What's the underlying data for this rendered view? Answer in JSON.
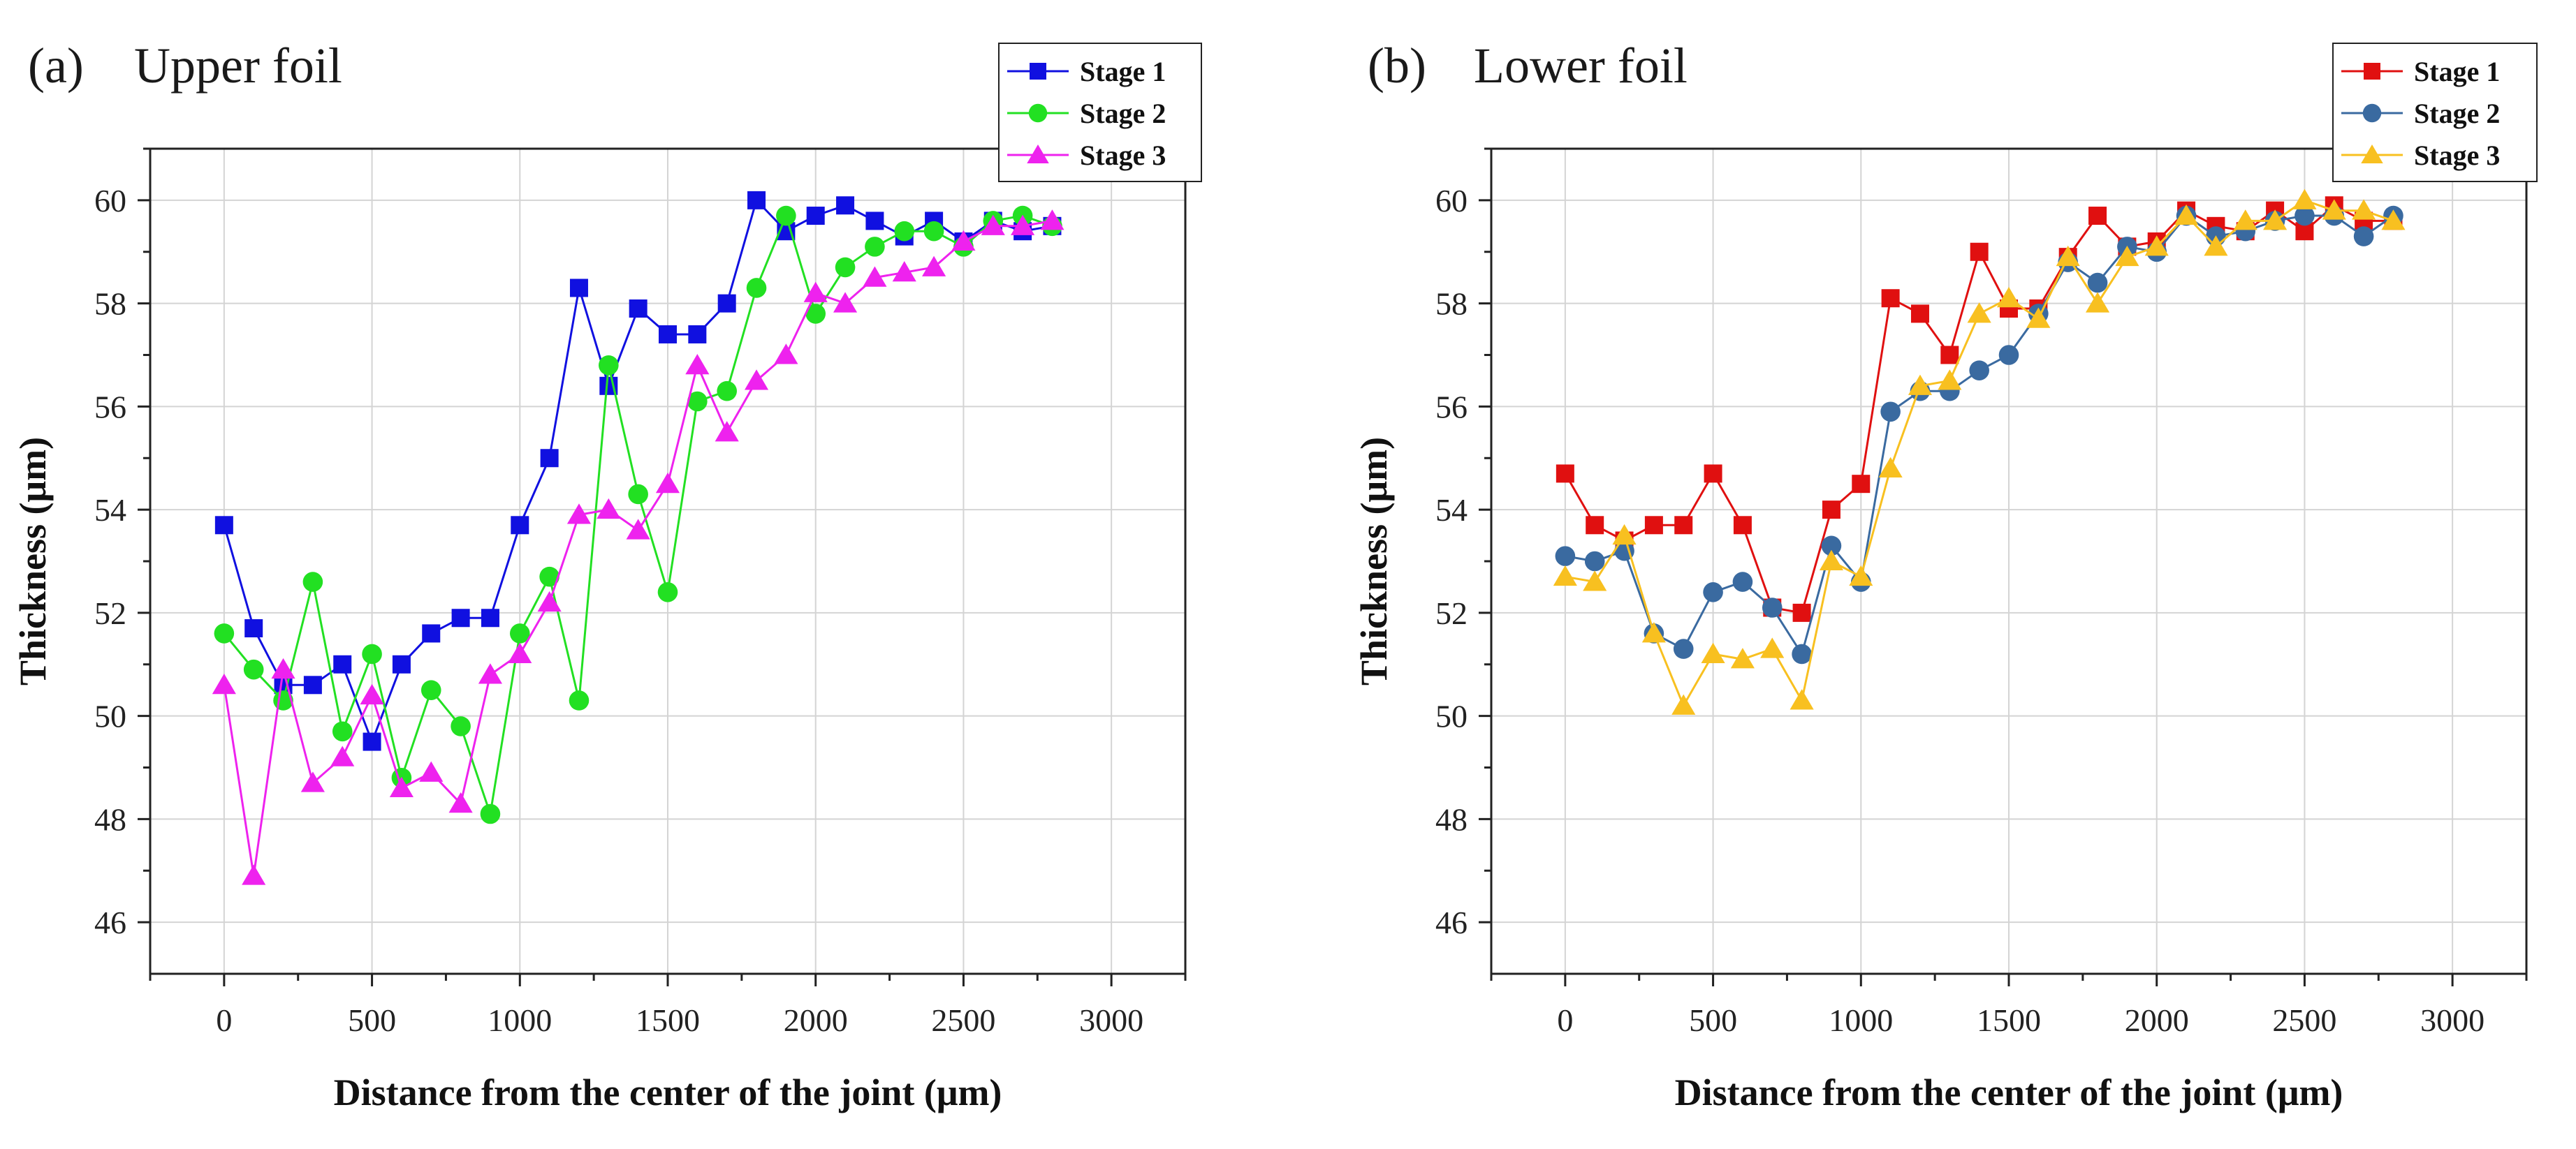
{
  "panels": [
    {
      "panel_label": "(a)",
      "title": "Upper foil",
      "colors": [
        "#1010e0",
        "#22e022",
        "#ee22ee"
      ]
    },
    {
      "panel_label": "(b)",
      "title": "Lower foil",
      "colors": [
        "#e01010",
        "#3a6aa0",
        "#f8c020"
      ]
    }
  ],
  "chart_data": [
    {
      "type": "line",
      "title": "Upper foil",
      "xlabel": "Distance from the center of the joint (μm)",
      "ylabel": "Thickness (μm)",
      "xlim": [
        -250,
        3250
      ],
      "ylim": [
        45,
        61
      ],
      "xticks": [
        0,
        500,
        1000,
        1500,
        2000,
        2500,
        3000
      ],
      "yticks": [
        46,
        48,
        50,
        52,
        54,
        56,
        58,
        60
      ],
      "grid": true,
      "legend_position": "top-right",
      "x": [
        0,
        100,
        200,
        300,
        400,
        500,
        600,
        700,
        800,
        900,
        1000,
        1100,
        1200,
        1300,
        1400,
        1500,
        1600,
        1700,
        1800,
        1900,
        2000,
        2100,
        2200,
        2300,
        2400,
        2500,
        2600,
        2700,
        2800
      ],
      "series": [
        {
          "name": "Stage 1",
          "marker": "square",
          "values": [
            53.7,
            51.7,
            50.6,
            50.6,
            51.0,
            49.5,
            51.0,
            51.6,
            51.9,
            51.9,
            53.7,
            55.0,
            58.3,
            56.4,
            57.9,
            57.4,
            57.4,
            58.0,
            60.0,
            59.4,
            59.7,
            59.9,
            59.6,
            59.3,
            59.6,
            59.2,
            59.6,
            59.4,
            59.5
          ]
        },
        {
          "name": "Stage 2",
          "marker": "circle",
          "values": [
            51.6,
            50.9,
            50.3,
            52.6,
            49.7,
            51.2,
            48.8,
            50.5,
            49.8,
            48.1,
            51.6,
            52.7,
            50.3,
            56.8,
            54.3,
            52.4,
            56.1,
            56.3,
            58.3,
            59.7,
            57.8,
            58.7,
            59.1,
            59.4,
            59.4,
            59.1,
            59.6,
            59.7,
            59.5
          ]
        },
        {
          "name": "Stage 3",
          "marker": "triangle",
          "values": [
            50.6,
            46.9,
            50.9,
            48.7,
            49.2,
            50.4,
            48.6,
            48.9,
            48.3,
            50.8,
            51.2,
            52.2,
            53.9,
            54.0,
            53.6,
            54.5,
            56.8,
            55.5,
            56.5,
            57.0,
            58.2,
            58.0,
            58.5,
            58.6,
            58.7,
            59.2,
            59.5,
            59.5,
            59.6
          ]
        }
      ]
    },
    {
      "type": "line",
      "title": "Lower foil",
      "xlabel": "Distance from the center of the joint (μm)",
      "ylabel": "Thickness (μm)",
      "xlim": [
        -250,
        3250
      ],
      "ylim": [
        45,
        61
      ],
      "xticks": [
        0,
        500,
        1000,
        1500,
        2000,
        2500,
        3000
      ],
      "yticks": [
        46,
        48,
        50,
        52,
        54,
        56,
        58,
        60
      ],
      "grid": true,
      "legend_position": "top-right",
      "x": [
        0,
        100,
        200,
        300,
        400,
        500,
        600,
        700,
        800,
        900,
        1000,
        1100,
        1200,
        1300,
        1400,
        1500,
        1600,
        1700,
        1800,
        1900,
        2000,
        2100,
        2200,
        2300,
        2400,
        2500,
        2600,
        2700,
        2800
      ],
      "series": [
        {
          "name": "Stage 1",
          "marker": "square",
          "values": [
            54.7,
            53.7,
            53.4,
            53.7,
            53.7,
            54.7,
            53.7,
            52.1,
            52.0,
            54.0,
            54.5,
            58.1,
            57.8,
            57.0,
            59.0,
            57.9,
            57.9,
            58.9,
            59.7,
            59.1,
            59.2,
            59.8,
            59.5,
            59.4,
            59.8,
            59.4,
            59.9,
            59.6,
            59.6
          ]
        },
        {
          "name": "Stage 2",
          "marker": "circle",
          "values": [
            53.1,
            53.0,
            53.2,
            51.6,
            51.3,
            52.4,
            52.6,
            52.1,
            51.2,
            53.3,
            52.6,
            55.9,
            56.3,
            56.3,
            56.7,
            57.0,
            57.8,
            58.8,
            58.4,
            59.1,
            59.0,
            59.7,
            59.3,
            59.4,
            59.6,
            59.7,
            59.7,
            59.3,
            59.7
          ]
        },
        {
          "name": "Stage 3",
          "marker": "triangle",
          "values": [
            52.7,
            52.6,
            53.5,
            51.6,
            50.2,
            51.2,
            51.1,
            51.3,
            50.3,
            53.0,
            52.7,
            54.8,
            56.4,
            56.5,
            57.8,
            58.1,
            57.7,
            58.9,
            58.0,
            58.9,
            59.1,
            59.7,
            59.1,
            59.6,
            59.6,
            60.0,
            59.8,
            59.8,
            59.6
          ]
        }
      ]
    }
  ]
}
